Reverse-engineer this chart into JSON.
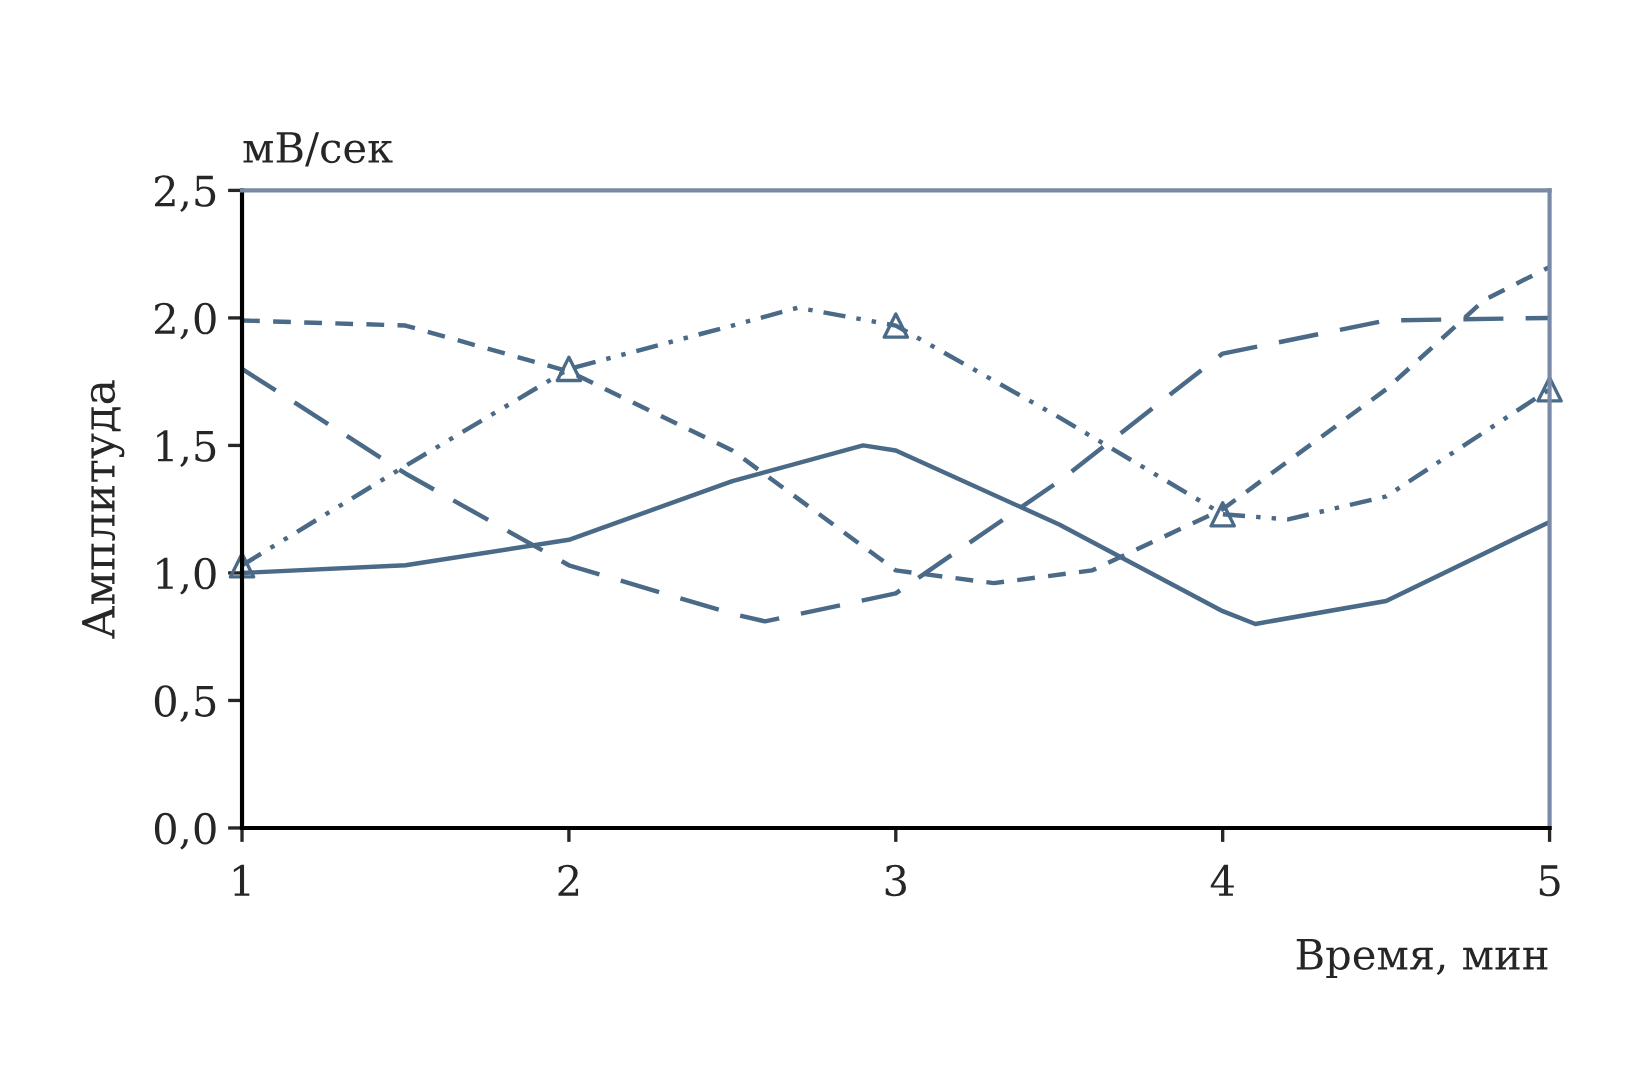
{
  "chart_data": {
    "type": "line",
    "ylabel": "Амплитуда",
    "xlabel": "Время, мин",
    "annotations": [
      "мВ/сек"
    ],
    "xlim": [
      1,
      5
    ],
    "xticks": [
      1,
      2,
      3,
      4,
      5
    ],
    "ylim": [
      0,
      2.5
    ],
    "yticks": [
      {
        "value": 0,
        "label": "0,0"
      },
      {
        "value": 0.5,
        "label": "0,5"
      },
      {
        "value": 1,
        "label": "1,0"
      },
      {
        "value": 1.5,
        "label": "1,5"
      },
      {
        "value": 2,
        "label": "2,0"
      },
      {
        "value": 2.5,
        "label": "2,5"
      }
    ],
    "grid": false,
    "legend": false,
    "series": [
      {
        "color": "#4a6a87",
        "line_style": "solid",
        "x": [
          1,
          1.5,
          2,
          2.5,
          2.9,
          3,
          3.5,
          4,
          4.1,
          4.5,
          5
        ],
        "values": [
          1.0,
          1.03,
          1.13,
          1.36,
          1.5,
          1.48,
          1.19,
          0.85,
          0.8,
          0.89,
          1.2
        ]
      },
      {
        "color": "#4a6a87",
        "line_style": "longdashed",
        "x": [
          1,
          1.5,
          2,
          2.5,
          2.6,
          3,
          3.5,
          4,
          4.5,
          5
        ],
        "values": [
          1.8,
          1.39,
          1.03,
          0.84,
          0.81,
          0.92,
          1.36,
          1.86,
          1.99,
          2.0
        ]
      },
      {
        "color": "#4a6a87",
        "line_style": "dashed",
        "x": [
          1,
          1.5,
          2,
          2.5,
          3,
          3.3,
          3.6,
          4,
          4.5,
          4.8,
          5
        ],
        "values": [
          1.99,
          1.97,
          1.79,
          1.48,
          1.01,
          0.96,
          1.01,
          1.25,
          1.72,
          2.07,
          2.2
        ]
      },
      {
        "color": "#4a6a87",
        "line_style": "dashdotdot",
        "x": [
          1,
          1.5,
          2,
          2.5,
          2.7,
          3,
          3.5,
          4,
          4.2,
          4.5,
          5
        ],
        "values": [
          1.03,
          1.42,
          1.8,
          1.97,
          2.04,
          1.97,
          1.61,
          1.23,
          1.21,
          1.3,
          1.72
        ]
      },
      {
        "type": "scatter",
        "color": "#4a6a87",
        "marker": "triangle",
        "x": [
          1,
          2,
          3,
          4,
          5
        ],
        "values": [
          1.03,
          1.8,
          1.97,
          1.23,
          1.72
        ]
      }
    ]
  }
}
